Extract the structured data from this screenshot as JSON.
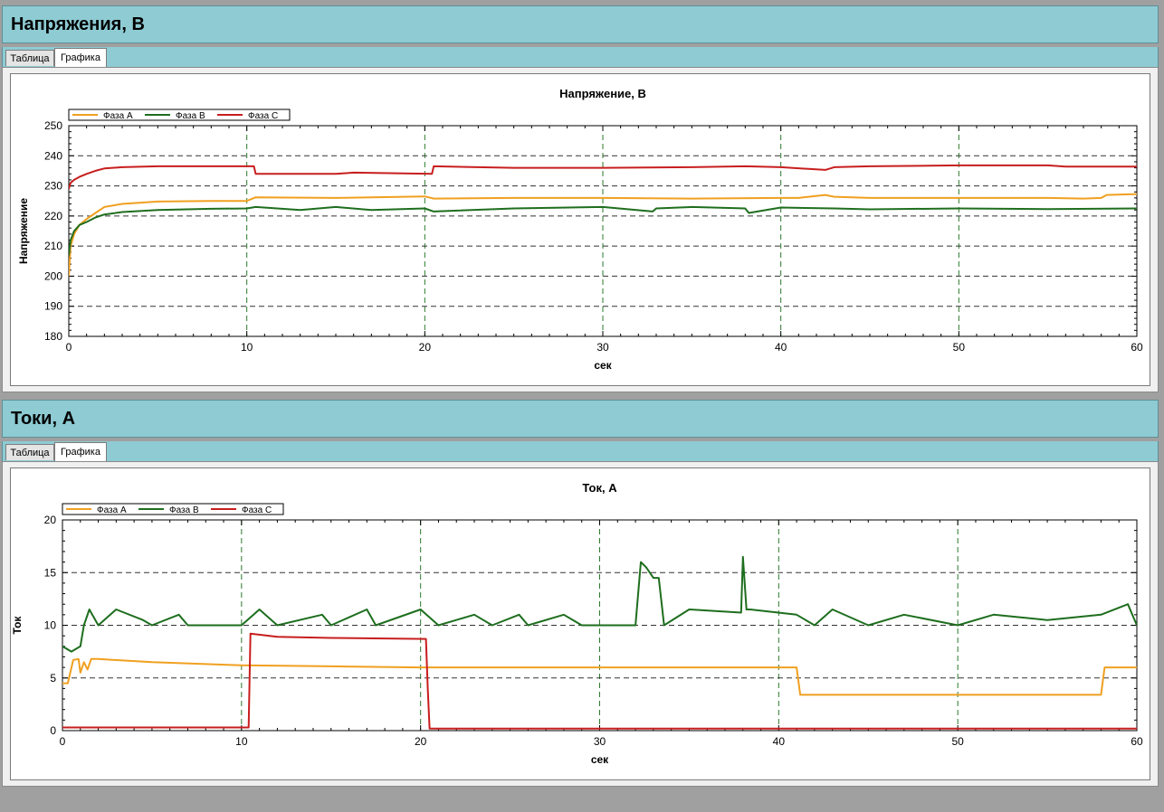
{
  "voltage_section": {
    "header": "Напряжения, В",
    "tabs": [
      {
        "label": "Таблица"
      },
      {
        "label": "Графика"
      }
    ]
  },
  "current_section": {
    "header": "Токи, А",
    "tabs": [
      {
        "label": "Таблица"
      },
      {
        "label": "Графика"
      }
    ]
  },
  "colors": {
    "phase_a": "#f0a020",
    "phase_b": "#1e6e1e",
    "phase_c": "#c81e1e",
    "grid": "#2a7a2a"
  },
  "chart_data": [
    {
      "type": "line",
      "title": "Напряжение, В",
      "xlabel": "сек",
      "ylabel": "Напряжение",
      "xlim": [
        0,
        60
      ],
      "ylim": [
        180,
        250
      ],
      "xticks": [
        "0",
        "10",
        "20",
        "30",
        "40",
        "50",
        "60"
      ],
      "yticks": [
        "180",
        "190",
        "200",
        "210",
        "220",
        "230",
        "240",
        "250"
      ],
      "grid": true,
      "legend": "top-left",
      "series": [
        {
          "name": "Фаза А",
          "color": "#f0a020",
          "x": [
            0,
            0.1,
            0.3,
            0.6,
            1.0,
            1.5,
            2.0,
            3.0,
            5.0,
            8.0,
            10.0,
            10.5,
            15.0,
            20.0,
            20.5,
            25.0,
            30.0,
            35.0,
            40.0,
            41.0,
            42.5,
            43.0,
            45.0,
            50.0,
            55.0,
            57.0,
            58.0,
            58.3,
            60.0
          ],
          "y": [
            200,
            210,
            214,
            217,
            219,
            221,
            223,
            224,
            224.8,
            225,
            225,
            226.2,
            226,
            226.5,
            225.8,
            226,
            226,
            225.8,
            226,
            226,
            227,
            226.4,
            226,
            226,
            226,
            225.8,
            226,
            227,
            227.3
          ]
        },
        {
          "name": "Фаза В",
          "color": "#1e6e1e",
          "x": [
            0,
            0.1,
            0.3,
            0.6,
            1.0,
            1.5,
            2.0,
            3.0,
            5.0,
            8.0,
            10.0,
            10.5,
            13.0,
            15.0,
            17.0,
            20.0,
            20.5,
            25.0,
            30.0,
            32.8,
            33.0,
            35.0,
            38.0,
            38.2,
            40.0,
            43.0,
            45.0,
            50.0,
            55.0,
            60.0
          ],
          "y": [
            207,
            212,
            215,
            217,
            218,
            219.5,
            220.5,
            221.3,
            222,
            222.4,
            222.5,
            223,
            222,
            223,
            222,
            222.5,
            221.5,
            222.5,
            223,
            221.5,
            222.5,
            223,
            222.5,
            221,
            222.8,
            222.5,
            222.2,
            222.5,
            222.3,
            222.5
          ]
        },
        {
          "name": "Фаза С",
          "color": "#c81e1e",
          "x": [
            0,
            0.1,
            0.3,
            0.6,
            1.0,
            1.5,
            2.0,
            3.0,
            5.0,
            8.0,
            10.4,
            10.5,
            15.0,
            16.0,
            20.4,
            20.5,
            25.0,
            30.0,
            35.0,
            38.0,
            40.0,
            42.5,
            43.0,
            45.0,
            50.0,
            55.0,
            56.0,
            60.0
          ],
          "y": [
            229,
            231,
            232,
            233,
            234,
            235,
            235.8,
            236.2,
            236.5,
            236.5,
            236.5,
            234,
            234,
            234.4,
            234,
            236.5,
            236,
            236,
            236.2,
            236.5,
            236.2,
            235.3,
            236.2,
            236.5,
            236.8,
            236.8,
            236.4,
            236.4
          ]
        }
      ]
    },
    {
      "type": "line",
      "title": "Ток, А",
      "xlabel": "сек",
      "ylabel": "Ток",
      "xlim": [
        0,
        60
      ],
      "ylim": [
        0,
        20
      ],
      "xticks": [
        "0",
        "10",
        "20",
        "30",
        "40",
        "50",
        "60"
      ],
      "yticks": [
        "0",
        "5",
        "10",
        "15",
        "20"
      ],
      "grid": true,
      "legend": "top-left",
      "series": [
        {
          "name": "Фаза А",
          "color": "#f0a020",
          "x": [
            0,
            0.3,
            0.6,
            0.9,
            1.0,
            1.2,
            1.4,
            1.6,
            2.0,
            5.0,
            10.0,
            15.0,
            20.0,
            25.0,
            30.0,
            35.0,
            40.0,
            41.0,
            41.2,
            45.0,
            50.0,
            55.0,
            58.0,
            58.2,
            60.0
          ],
          "y": [
            4.5,
            4.5,
            6.7,
            6.8,
            5.5,
            6.5,
            5.8,
            6.8,
            6.8,
            6.5,
            6.2,
            6.1,
            6.0,
            6.0,
            6.0,
            6.0,
            6.0,
            6.0,
            3.4,
            3.4,
            3.4,
            3.4,
            3.4,
            6.0,
            6.0
          ]
        },
        {
          "name": "Фаза В",
          "color": "#1e6e1e",
          "x": [
            0,
            0.5,
            1.0,
            1.2,
            1.5,
            2.0,
            3.0,
            4.5,
            5.0,
            6.5,
            7.0,
            10.0,
            11.0,
            12.0,
            14.5,
            15.0,
            17.0,
            17.5,
            20.0,
            21.0,
            23.0,
            24.0,
            25.5,
            26.0,
            28.0,
            29.0,
            32.0,
            32.3,
            32.6,
            33.0,
            33.3,
            33.6,
            35.0,
            37.9,
            38.0,
            38.2,
            38.4,
            41.0,
            42.0,
            43.0,
            45.0,
            47.0,
            50.0,
            52.0,
            55.0,
            58.0,
            59.5,
            60.0
          ],
          "y": [
            8.0,
            7.5,
            8.0,
            10.0,
            11.5,
            10.0,
            11.5,
            10.5,
            10.0,
            11.0,
            10.0,
            10.0,
            11.5,
            10.0,
            11.0,
            10.0,
            11.5,
            10.0,
            11.5,
            10.0,
            11.0,
            10.0,
            11.0,
            10.0,
            11.0,
            10.0,
            10.0,
            16.0,
            15.5,
            14.5,
            14.5,
            10.0,
            11.5,
            11.2,
            16.5,
            11.5,
            11.5,
            11.0,
            10.0,
            11.5,
            10.0,
            11.0,
            10.0,
            11.0,
            10.5,
            11.0,
            12.0,
            10.0
          ]
        },
        {
          "name": "Фаза С",
          "color": "#c81e1e",
          "x": [
            0,
            10.3,
            10.4,
            10.5,
            12.0,
            15.0,
            20.3,
            20.4,
            20.5,
            30.0,
            40.0,
            50.0,
            60.0
          ],
          "y": [
            0.3,
            0.3,
            0.3,
            9.2,
            8.9,
            8.8,
            8.7,
            4.0,
            0.2,
            0.2,
            0.2,
            0.2,
            0.2
          ]
        }
      ]
    }
  ]
}
